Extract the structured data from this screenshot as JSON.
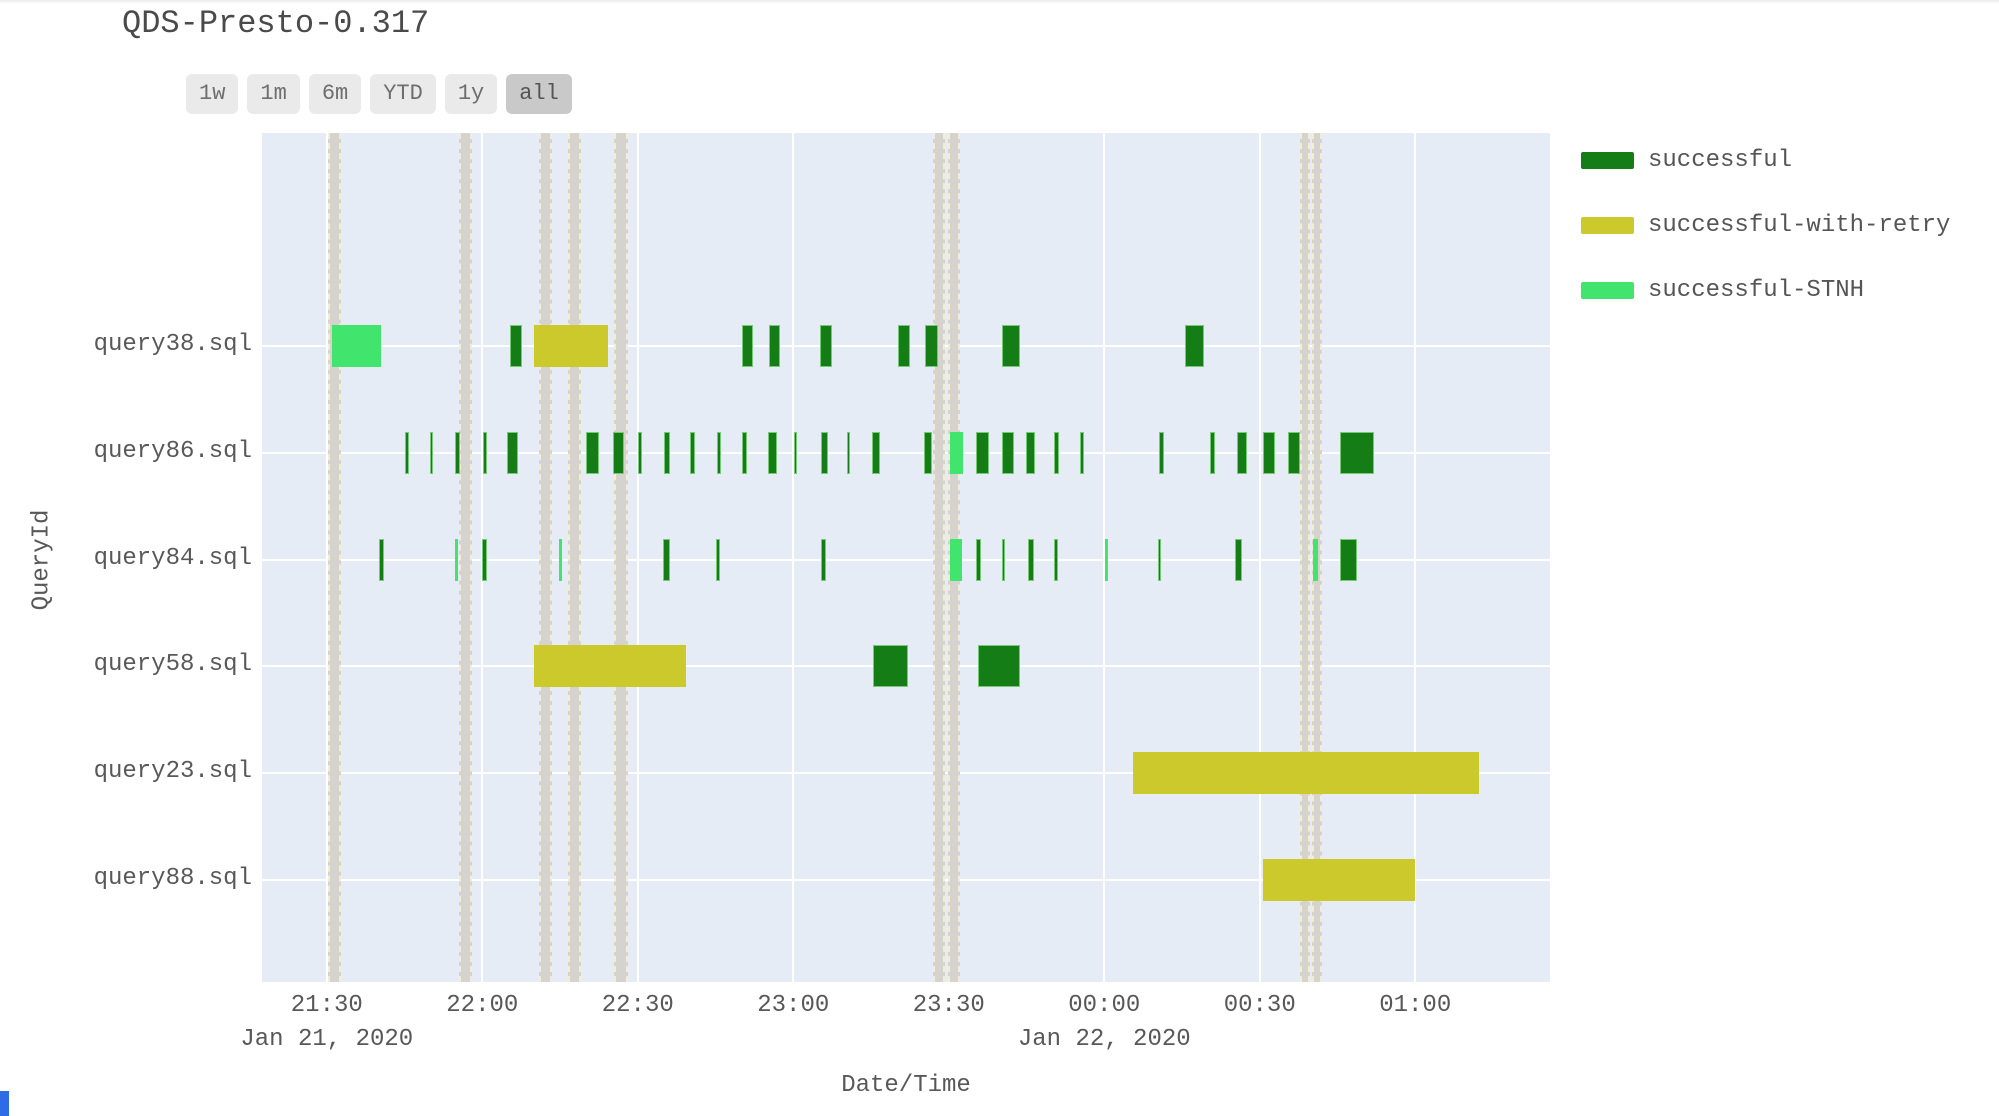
{
  "header": {
    "title": "QDS-Presto-0.317"
  },
  "range_selector": {
    "buttons": [
      {
        "label": "1w",
        "active": false
      },
      {
        "label": "1m",
        "active": false
      },
      {
        "label": "6m",
        "active": false
      },
      {
        "label": "YTD",
        "active": false
      },
      {
        "label": "1y",
        "active": false
      },
      {
        "label": "all",
        "active": true
      }
    ]
  },
  "chart_data": {
    "type": "timeline",
    "title": "QDS-Presto-0.317",
    "xlabel": "Date/Time",
    "ylabel": "QueryId",
    "plot_bg": "#e5ecf6",
    "grid": true,
    "legend_position": "right",
    "time_unit": "minutes after 2020-01-21 21:00",
    "axis": {
      "t_min": 17.5,
      "t_max": 266,
      "tick_interval_min": 30
    },
    "x_ticks": [
      {
        "t": 30,
        "label": "21:30"
      },
      {
        "t": 60,
        "label": "22:00"
      },
      {
        "t": 90,
        "label": "22:30"
      },
      {
        "t": 120,
        "label": "23:00"
      },
      {
        "t": 150,
        "label": "23:30"
      },
      {
        "t": 180,
        "label": "00:00"
      },
      {
        "t": 210,
        "label": "00:30"
      },
      {
        "t": 240,
        "label": "01:00"
      }
    ],
    "x_day_labels": [
      {
        "t": 30,
        "label": "Jan 21, 2020"
      },
      {
        "t": 180,
        "label": "Jan 22, 2020"
      }
    ],
    "rows": [
      "query38.sql",
      "query86.sql",
      "query84.sql",
      "query58.sql",
      "query23.sql",
      "query88.sql"
    ],
    "statuses": [
      {
        "name": "successful",
        "color": "#157d15"
      },
      {
        "name": "successful-with-retry",
        "color": "#cbc92b"
      },
      {
        "name": "successful-STNH",
        "color": "#41e56e"
      }
    ],
    "maintenance_bands": [
      [
        30.2,
        32.8
      ],
      [
        55.5,
        58.0
      ],
      [
        71.0,
        73.5
      ],
      [
        76.6,
        79.1
      ],
      [
        85.4,
        88.1
      ],
      [
        147.0,
        149.3
      ],
      [
        149.9,
        152.2
      ],
      [
        217.8,
        219.7
      ],
      [
        220.1,
        222.0
      ]
    ],
    "bars": [
      {
        "row": "query38.sql",
        "status": "successful-STNH",
        "start": 31.0,
        "end": 40.5
      },
      {
        "row": "query38.sql",
        "status": "successful",
        "start": 65.3,
        "end": 67.6
      },
      {
        "row": "query38.sql",
        "status": "successful-with-retry",
        "start": 70.0,
        "end": 84.2
      },
      {
        "row": "query38.sql",
        "status": "successful",
        "start": 110.1,
        "end": 112.2
      },
      {
        "row": "query38.sql",
        "status": "successful",
        "start": 115.3,
        "end": 117.4
      },
      {
        "row": "query38.sql",
        "status": "successful",
        "start": 125.2,
        "end": 127.5
      },
      {
        "row": "query38.sql",
        "status": "successful",
        "start": 140.2,
        "end": 142.5
      },
      {
        "row": "query38.sql",
        "status": "successful",
        "start": 145.4,
        "end": 147.9
      },
      {
        "row": "query38.sql",
        "status": "successful",
        "start": 160.3,
        "end": 163.8
      },
      {
        "row": "query38.sql",
        "status": "successful",
        "start": 195.6,
        "end": 199.3
      },
      {
        "row": "query86.sql",
        "status": "successful",
        "start": 45.1,
        "end": 45.8
      },
      {
        "row": "query86.sql",
        "status": "successful",
        "start": 49.9,
        "end": 50.5
      },
      {
        "row": "query86.sql",
        "status": "successful",
        "start": 54.7,
        "end": 55.7
      },
      {
        "row": "query86.sql",
        "status": "successful",
        "start": 60.1,
        "end": 60.9
      },
      {
        "row": "query86.sql",
        "status": "successful",
        "start": 64.7,
        "end": 66.9
      },
      {
        "row": "query86.sql",
        "status": "successful",
        "start": 80.0,
        "end": 82.5
      },
      {
        "row": "query86.sql",
        "status": "successful",
        "start": 85.2,
        "end": 87.3
      },
      {
        "row": "query86.sql",
        "status": "successful",
        "start": 90.0,
        "end": 90.8
      },
      {
        "row": "query86.sql",
        "status": "successful",
        "start": 95.0,
        "end": 96.2
      },
      {
        "row": "query86.sql",
        "status": "successful",
        "start": 100.1,
        "end": 101.0
      },
      {
        "row": "query86.sql",
        "status": "successful",
        "start": 105.3,
        "end": 106.0
      },
      {
        "row": "query86.sql",
        "status": "successful",
        "start": 110.1,
        "end": 111.1
      },
      {
        "row": "query86.sql",
        "status": "successful",
        "start": 115.1,
        "end": 116.9
      },
      {
        "row": "query86.sql",
        "status": "successful",
        "start": 120.1,
        "end": 120.7
      },
      {
        "row": "query86.sql",
        "status": "successful",
        "start": 125.3,
        "end": 126.7
      },
      {
        "row": "query86.sql",
        "status": "successful",
        "start": 130.4,
        "end": 130.9
      },
      {
        "row": "query86.sql",
        "status": "successful",
        "start": 135.2,
        "end": 136.7
      },
      {
        "row": "query86.sql",
        "status": "successful",
        "start": 145.2,
        "end": 146.8
      },
      {
        "row": "query86.sql",
        "status": "successful-STNH",
        "start": 150.3,
        "end": 152.8
      },
      {
        "row": "query86.sql",
        "status": "successful",
        "start": 155.3,
        "end": 157.8
      },
      {
        "row": "query86.sql",
        "status": "successful",
        "start": 160.3,
        "end": 162.6
      },
      {
        "row": "query86.sql",
        "status": "successful",
        "start": 164.9,
        "end": 166.7
      },
      {
        "row": "query86.sql",
        "status": "successful",
        "start": 170.3,
        "end": 171.3
      },
      {
        "row": "query86.sql",
        "status": "successful",
        "start": 175.3,
        "end": 176.1
      },
      {
        "row": "query86.sql",
        "status": "successful",
        "start": 190.6,
        "end": 191.6
      },
      {
        "row": "query86.sql",
        "status": "successful",
        "start": 200.4,
        "end": 201.4
      },
      {
        "row": "query86.sql",
        "status": "successful",
        "start": 205.6,
        "end": 207.6
      },
      {
        "row": "query86.sql",
        "status": "successful",
        "start": 210.7,
        "end": 213.0
      },
      {
        "row": "query86.sql",
        "status": "successful",
        "start": 215.5,
        "end": 217.8
      },
      {
        "row": "query86.sql",
        "status": "successful",
        "start": 225.5,
        "end": 232.1
      },
      {
        "row": "query84.sql",
        "status": "successful",
        "start": 40.0,
        "end": 41.0
      },
      {
        "row": "query84.sql",
        "status": "successful-STNH",
        "start": 54.7,
        "end": 55.3
      },
      {
        "row": "query84.sql",
        "status": "successful",
        "start": 59.9,
        "end": 60.9
      },
      {
        "row": "query84.sql",
        "status": "successful-STNH",
        "start": 74.8,
        "end": 75.4
      },
      {
        "row": "query84.sql",
        "status": "successful",
        "start": 94.9,
        "end": 96.2
      },
      {
        "row": "query84.sql",
        "status": "successful",
        "start": 105.1,
        "end": 105.9
      },
      {
        "row": "query84.sql",
        "status": "successful",
        "start": 125.3,
        "end": 126.3
      },
      {
        "row": "query84.sql",
        "status": "successful-STNH",
        "start": 150.3,
        "end": 152.6
      },
      {
        "row": "query84.sql",
        "status": "successful",
        "start": 155.3,
        "end": 156.2
      },
      {
        "row": "query84.sql",
        "status": "successful",
        "start": 160.3,
        "end": 160.9
      },
      {
        "row": "query84.sql",
        "status": "successful",
        "start": 165.3,
        "end": 166.5
      },
      {
        "row": "query84.sql",
        "status": "successful",
        "start": 170.3,
        "end": 171.1
      },
      {
        "row": "query84.sql",
        "status": "successful-STNH",
        "start": 180.1,
        "end": 180.7
      },
      {
        "row": "query84.sql",
        "status": "successful",
        "start": 190.4,
        "end": 191.0
      },
      {
        "row": "query84.sql",
        "status": "successful",
        "start": 205.2,
        "end": 206.6
      },
      {
        "row": "query84.sql",
        "status": "successful-STNH",
        "start": 220.3,
        "end": 221.3
      },
      {
        "row": "query84.sql",
        "status": "successful",
        "start": 225.5,
        "end": 228.8
      },
      {
        "row": "query58.sql",
        "status": "successful-with-retry",
        "start": 70.0,
        "end": 99.3
      },
      {
        "row": "query58.sql",
        "status": "successful",
        "start": 135.4,
        "end": 142.1
      },
      {
        "row": "query58.sql",
        "status": "successful",
        "start": 155.7,
        "end": 163.8
      },
      {
        "row": "query23.sql",
        "status": "successful-with-retry",
        "start": 185.6,
        "end": 252.4
      },
      {
        "row": "query88.sql",
        "status": "successful-with-retry",
        "start": 210.7,
        "end": 240.0
      }
    ]
  }
}
